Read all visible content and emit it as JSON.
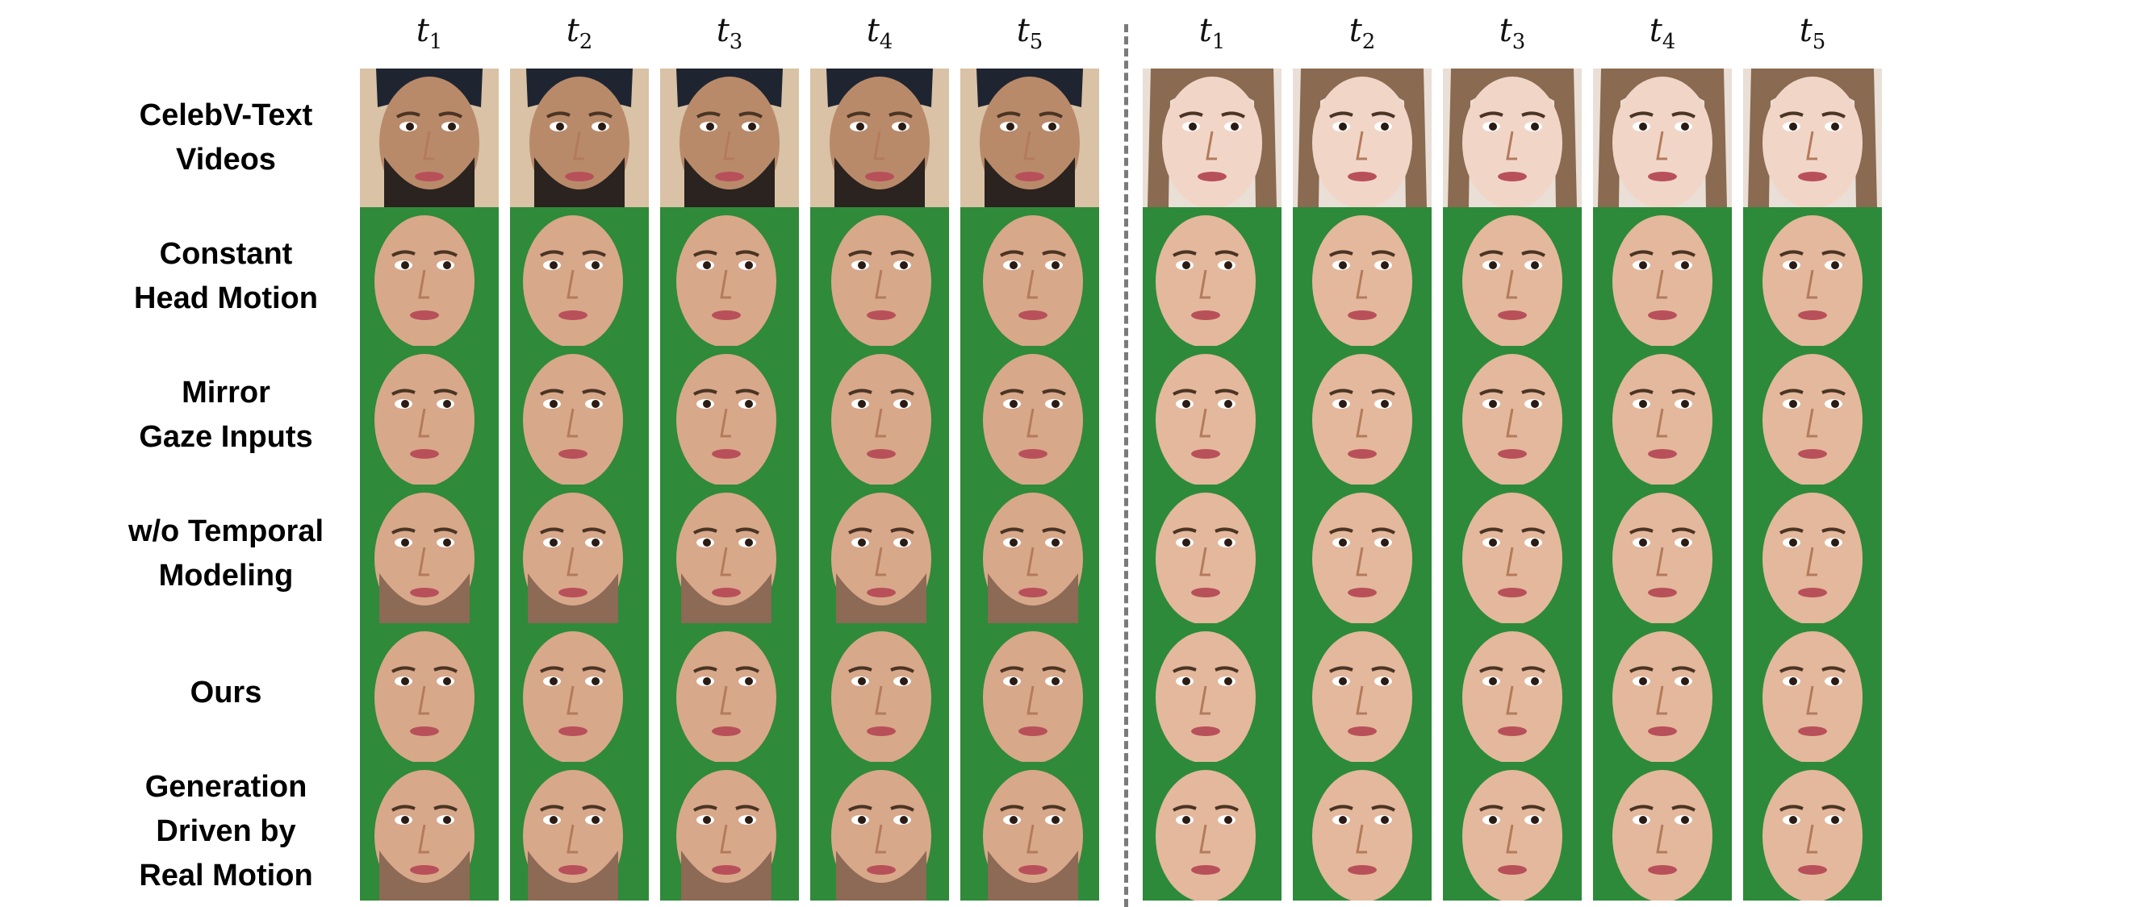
{
  "figure": {
    "group_left": {
      "time_labels": [
        "t",
        "t",
        "t",
        "t",
        "t"
      ],
      "time_subs": [
        "1",
        "2",
        "3",
        "4",
        "5"
      ]
    },
    "group_right": {
      "time_labels": [
        "t",
        "t",
        "t",
        "t",
        "t"
      ],
      "time_subs": [
        "1",
        "2",
        "3",
        "4",
        "5"
      ]
    },
    "rows": [
      {
        "label": "CelebV-Text\nVideos",
        "kind": "source"
      },
      {
        "label": "Constant\nHead Motion",
        "kind": "green"
      },
      {
        "label": "Mirror\nGaze Inputs",
        "kind": "green"
      },
      {
        "label": "w/o Temporal\nModeling",
        "kind": "green"
      },
      {
        "label": "Ours",
        "kind": "green"
      },
      {
        "label": "Generation\nDriven by\nReal Motion",
        "kind": "green"
      }
    ]
  }
}
